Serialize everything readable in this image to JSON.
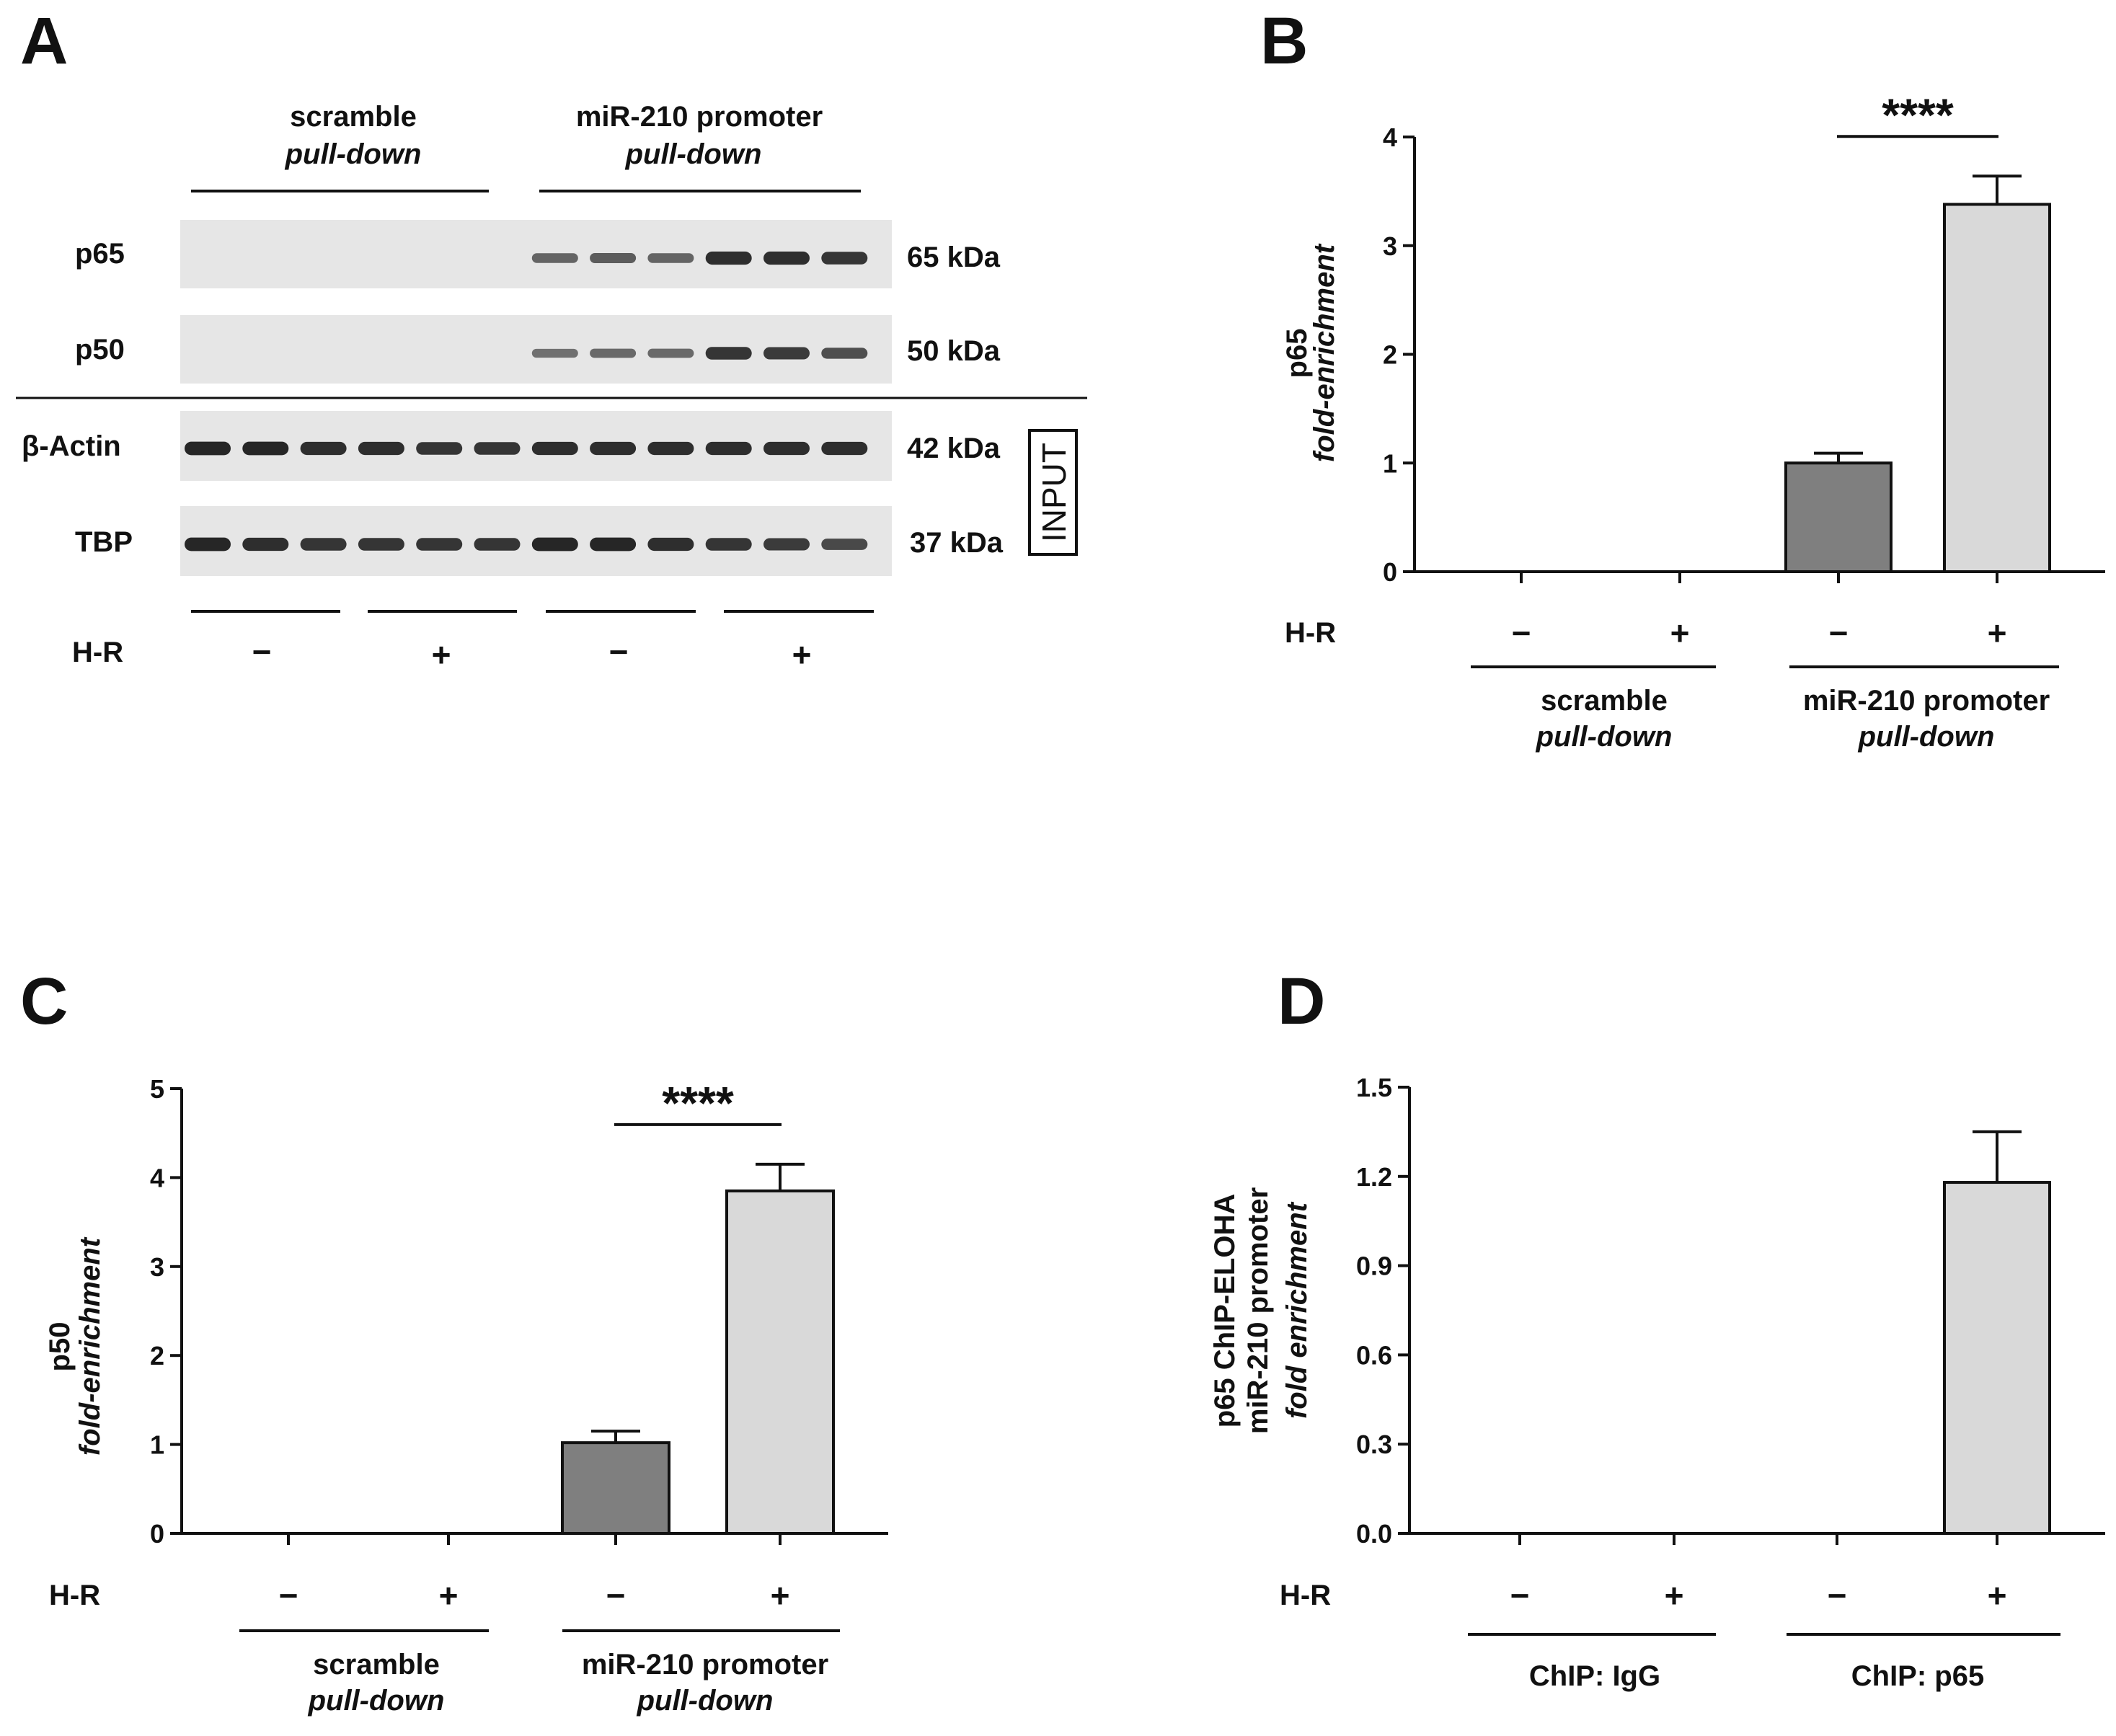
{
  "panelA": {
    "panel_label": "A",
    "group1_line1": "scramble",
    "group1_line2": "pull-down",
    "group2_line1": "miR-210 promoter",
    "group2_line2": "pull-down",
    "rows": [
      {
        "label": "p65",
        "size": "65 kDa",
        "bands": [
          0,
          0,
          0,
          0,
          0,
          0,
          0.45,
          0.5,
          0.45,
          0.85,
          0.85,
          0.8
        ]
      },
      {
        "label": "p50",
        "size": "50 kDa",
        "bands": [
          0,
          0,
          0,
          0,
          0,
          0,
          0.35,
          0.4,
          0.4,
          0.8,
          0.75,
          0.6
        ]
      },
      {
        "label": "β-Actin",
        "size": "42 kDa",
        "bands": [
          0.9,
          0.9,
          0.85,
          0.85,
          0.8,
          0.8,
          0.85,
          0.85,
          0.85,
          0.85,
          0.85,
          0.85
        ]
      },
      {
        "label": "TBP",
        "size": "37 kDa",
        "bands": [
          0.9,
          0.85,
          0.8,
          0.8,
          0.8,
          0.8,
          0.9,
          0.9,
          0.85,
          0.8,
          0.75,
          0.65
        ]
      }
    ],
    "input_label": "INPUT",
    "hr_label": "H-R",
    "hr_signs": [
      "−",
      "+",
      "−",
      "+"
    ]
  },
  "colors": {
    "dark_bar": "#7f7f7f",
    "light_bar": "#d9d9d9",
    "blot_bg": "#e6e6e6",
    "band": "#1a1a1a"
  },
  "chart_data": [
    {
      "panel": "B",
      "type": "bar",
      "categories": [
        "scramble −",
        "scramble +",
        "miR-210 promoter −",
        "miR-210 promoter +"
      ],
      "values": [
        0,
        0,
        1.0,
        3.38
      ],
      "errors": [
        0,
        0,
        0.09,
        0.26
      ],
      "bar_colors": [
        "light",
        "light",
        "dark",
        "light"
      ],
      "ylim": [
        0,
        4
      ],
      "yticks": [
        "0",
        "1",
        "2",
        "3",
        "4"
      ],
      "ylabel_line1": "p65",
      "ylabel_line2": "fold-enrichment",
      "significance": "****",
      "hr_label": "H-R",
      "hr_signs": [
        "−",
        "+",
        "−",
        "+"
      ],
      "group1_line1": "scramble",
      "group1_line2": "pull-down",
      "group2_line1": "miR-210 promoter",
      "group2_line2": "pull-down"
    },
    {
      "panel": "C",
      "type": "bar",
      "categories": [
        "scramble −",
        "scramble +",
        "miR-210 promoter −",
        "miR-210 promoter +"
      ],
      "values": [
        0,
        0,
        1.02,
        3.85
      ],
      "errors": [
        0,
        0,
        0.13,
        0.3
      ],
      "bar_colors": [
        "light",
        "light",
        "dark",
        "light"
      ],
      "ylim": [
        0,
        5
      ],
      "yticks": [
        "0",
        "1",
        "2",
        "3",
        "4",
        "5"
      ],
      "ylabel_line1": "p50",
      "ylabel_line2": "fold-enrichment",
      "significance": "****",
      "hr_label": "H-R",
      "hr_signs": [
        "−",
        "+",
        "−",
        "+"
      ],
      "group1_line1": "scramble",
      "group1_line2": "pull-down",
      "group2_line1": "miR-210 promoter",
      "group2_line2": "pull-down"
    },
    {
      "panel": "D",
      "type": "bar",
      "categories": [
        "ChIP: IgG −",
        "ChIP: IgG +",
        "ChIP: p65 −",
        "ChIP: p65 +"
      ],
      "values": [
        0,
        0,
        0,
        1.18
      ],
      "errors": [
        0,
        0,
        0,
        0.17
      ],
      "bar_colors": [
        "light",
        "light",
        "light",
        "light"
      ],
      "ylim": [
        0,
        1.5
      ],
      "yticks": [
        "0.0",
        "0.3",
        "0.6",
        "0.9",
        "1.2",
        "1.5"
      ],
      "ylabel_line1": "p65  ChIP-ELOHA",
      "ylabel_line2": "miR-210 promoter",
      "ylabel_line3": "fold enrichment",
      "significance": "",
      "hr_label": "H-R",
      "hr_signs": [
        "−",
        "+",
        "−",
        "+"
      ],
      "group1_line1": "ChIP: IgG",
      "group1_line2": "",
      "group2_line1": "ChIP: p65",
      "group2_line2": ""
    }
  ]
}
